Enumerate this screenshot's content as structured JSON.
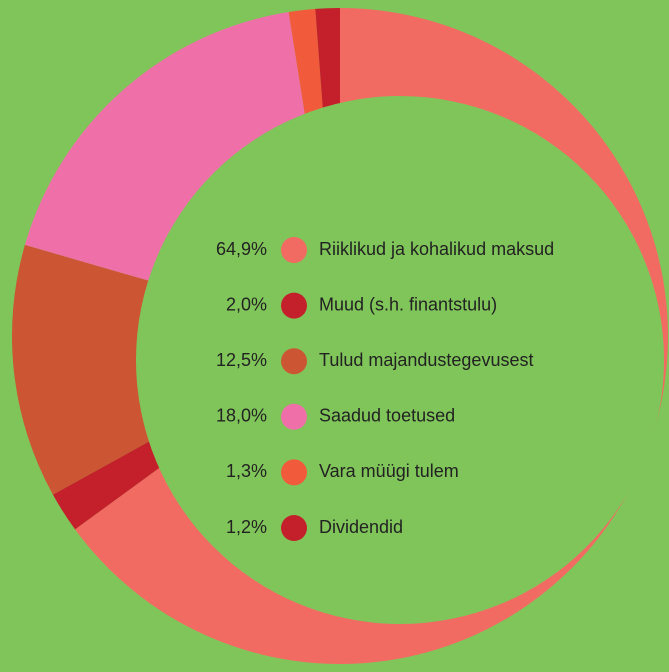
{
  "chart_data": {
    "type": "donut",
    "categories": [
      "Riiklikud ja kohalikud maksud",
      "Muud (s.h. finantstulu)",
      "Tulud majandustegevusest",
      "Saadud toetused",
      "Vara müügi tulem",
      "Dividendid"
    ],
    "values": [
      64.9,
      2.0,
      12.5,
      18.0,
      1.3,
      1.2
    ],
    "value_labels": [
      "64,9%",
      "2,0%",
      "12,5%",
      "18,0%",
      "1,3%",
      "1,2%"
    ],
    "colors": [
      "#f26b63",
      "#c4202b",
      "#cc5533",
      "#ef6fa8",
      "#f25a3c",
      "#c4202b"
    ]
  }
}
